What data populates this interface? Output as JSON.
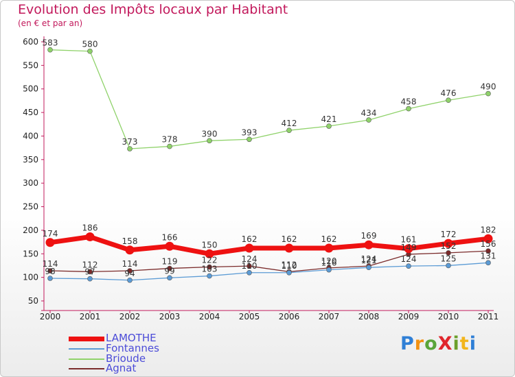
{
  "title": "Evolution des Impôts locaux par Habitant",
  "subtitle": "(en € et par an)",
  "brand": "ProXiti",
  "chart_data": {
    "type": "line",
    "title": "Evolution des Impôts locaux par Habitant",
    "subtitle": "(en € et par an)",
    "xlabel": "",
    "ylabel": "",
    "categories": [
      "2000",
      "2001",
      "2002",
      "2003",
      "2004",
      "2005",
      "2006",
      "2007",
      "2008",
      "2009",
      "2010",
      "2011"
    ],
    "ylim": [
      50,
      600
    ],
    "yticks": [
      50,
      100,
      150,
      200,
      250,
      300,
      350,
      400,
      450,
      500,
      550,
      600
    ],
    "grid": false,
    "legend_position": "bottom-left",
    "series": [
      {
        "name": "LAMOTHE",
        "color": "#ee1111",
        "values": [
          174,
          186,
          158,
          166,
          150,
          162,
          162,
          162,
          169,
          161,
          172,
          182
        ],
        "labels": [
          "174",
          "186",
          "158",
          "166",
          "150",
          "162",
          "162",
          "162",
          "169",
          "161",
          "172",
          "182"
        ]
      },
      {
        "name": "Fontannes",
        "color": "#5b9bd5",
        "values": [
          98,
          97,
          94,
          99,
          103,
          110,
          110,
          116,
          121,
          124,
          125,
          131
        ],
        "labels": [
          "98",
          "97",
          "94",
          "99",
          "103",
          "110",
          "110",
          "116",
          "121",
          "124",
          "125",
          "131"
        ]
      },
      {
        "name": "Brioude",
        "color": "#8fd26a",
        "values": [
          583,
          580,
          373,
          378,
          390,
          393,
          412,
          421,
          434,
          458,
          476,
          490
        ],
        "labels": [
          "583",
          "580",
          "373",
          "378",
          "390",
          "393",
          "412",
          "421",
          "434",
          "458",
          "476",
          "490"
        ]
      },
      {
        "name": "Agnat",
        "color": "#7a2a2a",
        "values": [
          114,
          112,
          114,
          119,
          122,
          124,
          112,
          120,
          124,
          149,
          152,
          156
        ],
        "labels": [
          "114",
          "112",
          "114",
          "119",
          "122",
          "124",
          "112",
          "120",
          "124",
          "149",
          "152",
          "156"
        ]
      }
    ]
  }
}
